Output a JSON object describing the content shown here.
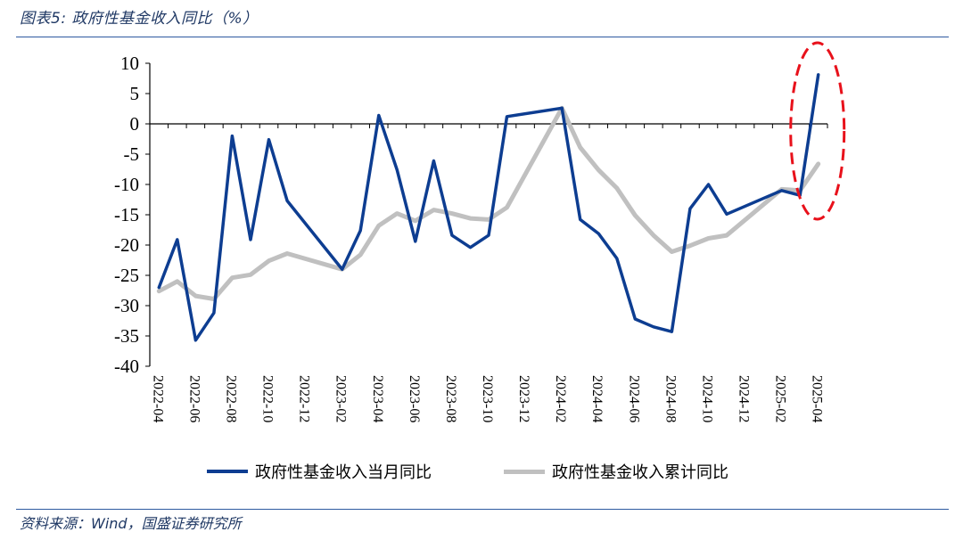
{
  "figure": {
    "title": "图表5:  政府性基金收入同比（%）",
    "source": "资料来源：Wind，国盛证券研究所"
  },
  "chart_data": {
    "type": "line",
    "x": [
      "2022-04",
      "2022-05",
      "2022-06",
      "2022-07",
      "2022-08",
      "2022-09",
      "2022-10",
      "2022-11",
      "2022-12",
      "2023-01",
      "2023-02",
      "2023-03",
      "2023-04",
      "2023-05",
      "2023-06",
      "2023-07",
      "2023-08",
      "2023-09",
      "2023-10",
      "2023-11",
      "2023-12",
      "2024-01",
      "2024-02",
      "2024-03",
      "2024-04",
      "2024-05",
      "2024-06",
      "2024-07",
      "2024-08",
      "2024-09",
      "2024-10",
      "2024-11",
      "2024-12",
      "2025-01",
      "2025-02",
      "2025-03",
      "2025-04"
    ],
    "xtick_labels": [
      "2022-04",
      "2022-06",
      "2022-08",
      "2022-10",
      "2022-12",
      "2023-02",
      "2023-04",
      "2023-06",
      "2023-08",
      "2023-10",
      "2023-12",
      "2024-02",
      "2024-04",
      "2024-06",
      "2024-08",
      "2024-10",
      "2024-12",
      "2025-02",
      "2025-04"
    ],
    "ylim": [
      -40,
      10
    ],
    "yticks": [
      10,
      5,
      0,
      -5,
      -10,
      -15,
      -20,
      -25,
      -30,
      -35,
      -40
    ],
    "series": [
      {
        "name": "政府性基金收入当月同比",
        "color": "#0d3d91",
        "values": [
          -27.0,
          -19.1,
          -35.7,
          -31.2,
          -2.0,
          -19.1,
          -2.6,
          -12.7,
          null,
          null,
          -24.0,
          -17.6,
          1.4,
          -7.6,
          -19.4,
          -6.1,
          -18.4,
          -20.4,
          -18.4,
          1.2,
          null,
          null,
          2.6,
          -15.8,
          -18.1,
          -22.2,
          -32.2,
          -33.5,
          -34.3,
          -14.0,
          -10.0,
          -14.9,
          null,
          null,
          -11.0,
          -11.8,
          8.1
        ]
      },
      {
        "name": "政府性基金收入累计同比",
        "color": "#c0c0c0",
        "values": [
          -27.6,
          -26.0,
          -28.4,
          -28.9,
          -25.4,
          -24.9,
          -22.6,
          -21.4,
          null,
          null,
          -24.0,
          -21.6,
          -16.8,
          -14.8,
          -16.0,
          -14.2,
          -14.8,
          -15.6,
          -15.8,
          -13.8,
          null,
          null,
          2.6,
          -3.9,
          -7.6,
          -10.6,
          -15.1,
          -18.4,
          -21.1,
          -20.1,
          -18.9,
          -18.4,
          null,
          null,
          -10.8,
          -11.0,
          -6.6
        ]
      }
    ],
    "annotation": {
      "type": "dashed-ellipse",
      "color": "#e8111b",
      "target_x": "2025-04"
    },
    "grid": false
  }
}
